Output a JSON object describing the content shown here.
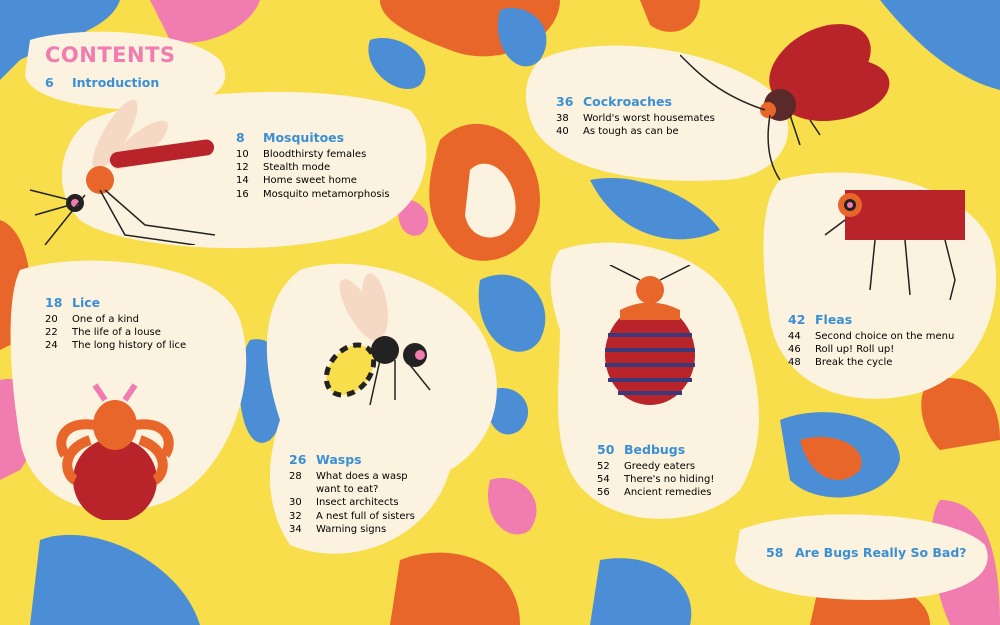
{
  "title": "CONTENTS",
  "colors": {
    "background": "#f8de4a",
    "cream": "#fbf3df",
    "blue": "#4c8ed6",
    "orange": "#e8662a",
    "pink": "#f17cb0",
    "heading": "#3b8fd4",
    "red": "#b8242a"
  },
  "sections": [
    {
      "page": "6",
      "title": "Introduction",
      "items": []
    },
    {
      "page": "8",
      "title": "Mosquitoes",
      "items": [
        {
          "page": "10",
          "label": "Bloodthirsty females"
        },
        {
          "page": "12",
          "label": "Stealth mode"
        },
        {
          "page": "14",
          "label": "Home sweet home"
        },
        {
          "page": "16",
          "label": "Mosquito metamorphosis"
        }
      ]
    },
    {
      "page": "36",
      "title": "Cockroaches",
      "items": [
        {
          "page": "38",
          "label": "World's worst housemates"
        },
        {
          "page": "40",
          "label": "As tough as can be"
        }
      ]
    },
    {
      "page": "18",
      "title": "Lice",
      "items": [
        {
          "page": "20",
          "label": "One of a kind"
        },
        {
          "page": "22",
          "label": "The life of a louse"
        },
        {
          "page": "24",
          "label": "The long history of lice"
        }
      ]
    },
    {
      "page": "26",
      "title": "Wasps",
      "items": [
        {
          "page": "28",
          "label": "What does a wasp want to eat?"
        },
        {
          "page": "30",
          "label": "Insect architects"
        },
        {
          "page": "32",
          "label": "A nest full of sisters"
        },
        {
          "page": "34",
          "label": "Warning signs"
        }
      ]
    },
    {
      "page": "42",
      "title": "Fleas",
      "items": [
        {
          "page": "44",
          "label": "Second choice on the menu"
        },
        {
          "page": "46",
          "label": "Roll up! Roll up!"
        },
        {
          "page": "48",
          "label": "Break the cycle"
        }
      ]
    },
    {
      "page": "50",
      "title": "Bedbugs",
      "items": [
        {
          "page": "52",
          "label": "Greedy eaters"
        },
        {
          "page": "54",
          "label": "There's no hiding!"
        },
        {
          "page": "56",
          "label": "Ancient remedies"
        }
      ]
    },
    {
      "page": "58",
      "title": "Are Bugs Really So Bad?",
      "items": []
    }
  ],
  "illustrations": [
    "mosquito",
    "cockroach",
    "flea",
    "wasp",
    "bedbug",
    "louse"
  ]
}
